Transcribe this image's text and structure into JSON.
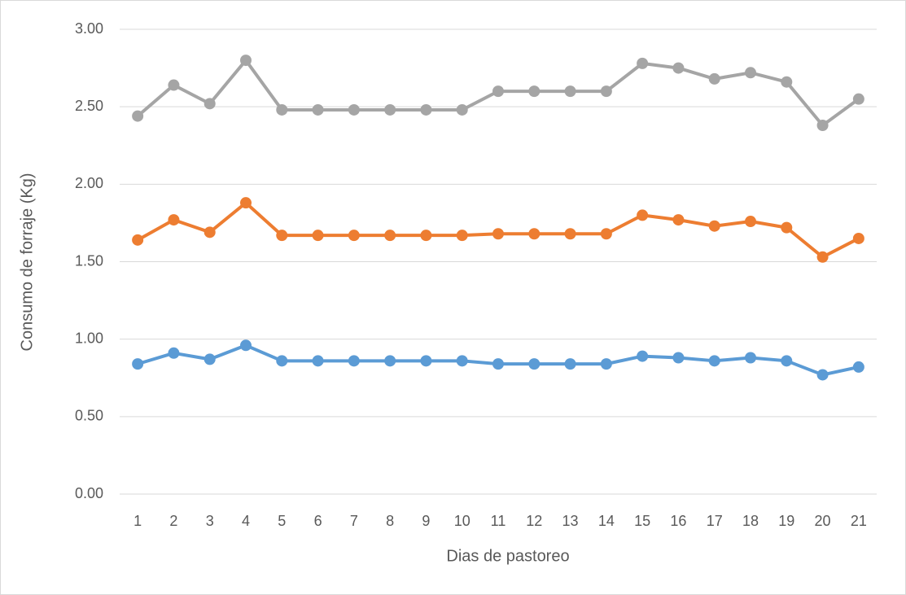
{
  "chart_data": {
    "type": "line",
    "xlabel": "Dias de pastoreo",
    "ylabel": "Consumo de forraje (Kg)",
    "categories": [
      "1",
      "2",
      "3",
      "4",
      "5",
      "6",
      "7",
      "8",
      "9",
      "10",
      "11",
      "12",
      "13",
      "14",
      "15",
      "16",
      "17",
      "18",
      "19",
      "20",
      "21"
    ],
    "series": [
      {
        "color": "#5b9bd5",
        "values": [
          0.84,
          0.91,
          0.87,
          0.96,
          0.86,
          0.86,
          0.86,
          0.86,
          0.86,
          0.86,
          0.84,
          0.84,
          0.84,
          0.84,
          0.89,
          0.88,
          0.86,
          0.88,
          0.86,
          0.77,
          0.82
        ]
      },
      {
        "color": "#ed7d31",
        "values": [
          1.64,
          1.77,
          1.69,
          1.88,
          1.67,
          1.67,
          1.67,
          1.67,
          1.67,
          1.67,
          1.68,
          1.68,
          1.68,
          1.68,
          1.8,
          1.77,
          1.73,
          1.76,
          1.72,
          1.53,
          1.65
        ]
      },
      {
        "color": "#a5a5a5",
        "values": [
          2.44,
          2.64,
          2.52,
          2.8,
          2.48,
          2.48,
          2.48,
          2.48,
          2.48,
          2.48,
          2.6,
          2.6,
          2.6,
          2.6,
          2.78,
          2.75,
          2.68,
          2.72,
          2.66,
          2.38,
          2.55
        ]
      }
    ],
    "ylim": [
      0,
      3
    ],
    "yticks": [
      {
        "value": 0,
        "label": "0.00"
      },
      {
        "value": 0.5,
        "label": "0.50"
      },
      {
        "value": 1,
        "label": "1.00"
      },
      {
        "value": 1.5,
        "label": "1.50"
      },
      {
        "value": 2,
        "label": "2.00"
      },
      {
        "value": 2.5,
        "label": "2.50"
      },
      {
        "value": 3,
        "label": "3.00"
      }
    ],
    "grid": true
  }
}
